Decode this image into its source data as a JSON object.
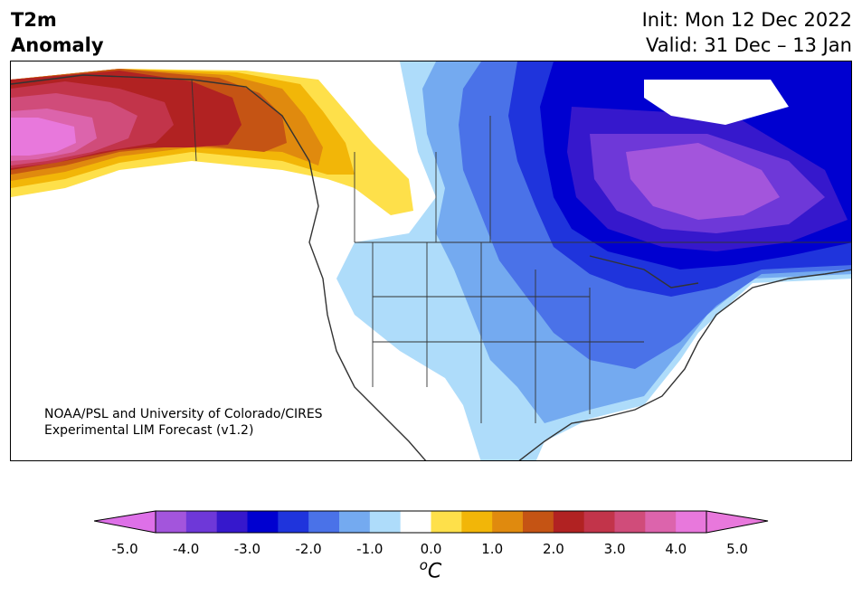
{
  "header": {
    "title_line1": "T2m",
    "title_line2": "Anomaly",
    "init": "Init: Mon 12 Dec 2022",
    "valid": "Valid: 31 Dec – 13 Jan"
  },
  "credit": {
    "line1": "NOAA/PSL and University of Colorado/CIRES",
    "line2": "Experimental LIM Forecast (v1.2)"
  },
  "colorbar": {
    "unit": "°C",
    "unit_display": "oC",
    "ticks": [
      "-5.0",
      "-4.0",
      "-3.0",
      "-2.0",
      "-1.0",
      "0.0",
      "1.0",
      "2.0",
      "3.0",
      "4.0",
      "5.0"
    ],
    "levels": [
      -5.0,
      -4.5,
      -4.0,
      -3.5,
      -3.0,
      -2.5,
      -2.0,
      -1.5,
      -1.0,
      -0.5,
      0.5,
      1.0,
      1.5,
      2.0,
      2.5,
      3.0,
      3.5,
      4.0,
      4.5,
      5.0
    ],
    "colors": [
      "#de70e8",
      "#a355dc",
      "#6e38d8",
      "#3618cc",
      "#0000d0",
      "#1f34dc",
      "#4a72e8",
      "#74aaf0",
      "#aedcfa",
      "#ffffff",
      "#fee04a",
      "#f2b608",
      "#e08a0e",
      "#c55414",
      "#b12222",
      "#c2344a",
      "#d04c7a",
      "#dc64ac",
      "#e878dc"
    ],
    "under_color": "#de70e8",
    "over_color": "#e878dc"
  }
}
